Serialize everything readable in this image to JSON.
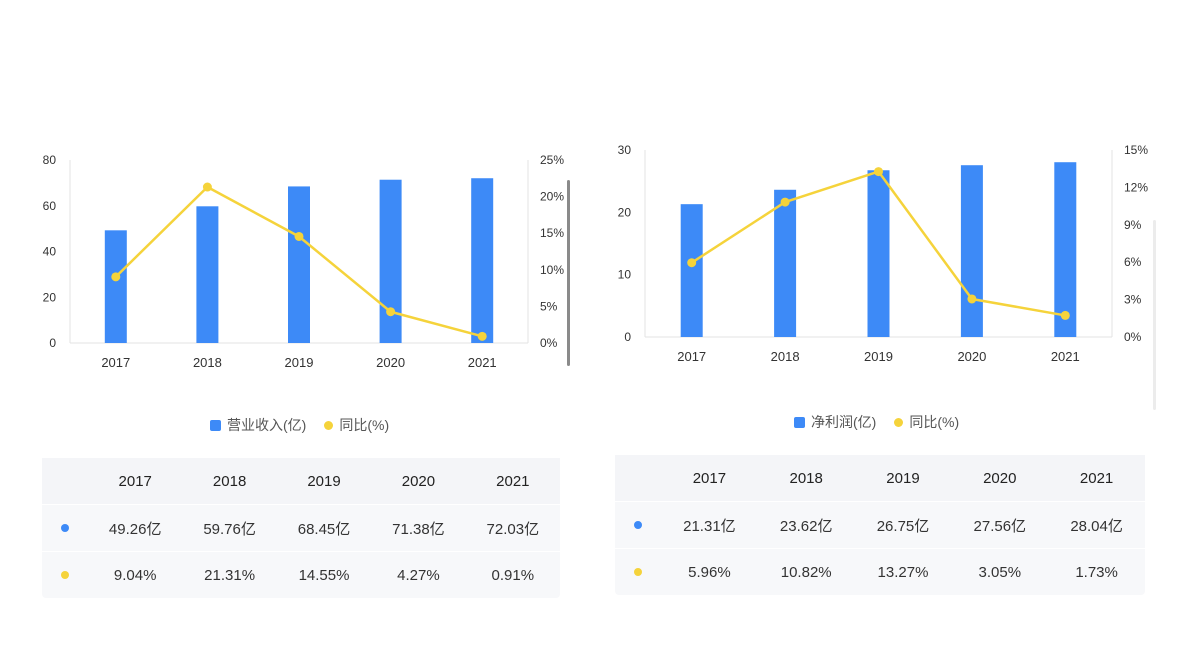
{
  "colors": {
    "bar": "#3d8af7",
    "line": "#f5d33b",
    "axis": "#e3e3e3"
  },
  "chart_data": [
    {
      "type": "bar",
      "categories": [
        "2017",
        "2018",
        "2019",
        "2020",
        "2021"
      ],
      "series": [
        {
          "name": "营业收入(亿)",
          "type": "bar",
          "axis": "left",
          "values": [
            49.26,
            59.76,
            68.45,
            71.38,
            72.03
          ]
        },
        {
          "name": "同比(%)",
          "type": "line",
          "axis": "right",
          "values": [
            9.04,
            21.31,
            14.55,
            4.27,
            0.91
          ]
        }
      ],
      "ylim": [
        0,
        80
      ],
      "y_ticks": [
        "0",
        "20",
        "40",
        "60",
        "80"
      ],
      "y2lim": [
        0,
        25
      ],
      "y2_ticks": [
        "0%",
        "5%",
        "10%",
        "15%",
        "20%",
        "25%"
      ],
      "legend": [
        "营业收入(亿)",
        "同比(%)"
      ],
      "table": {
        "header": [
          "2017",
          "2018",
          "2019",
          "2020",
          "2021"
        ],
        "rows": [
          [
            "49.26亿",
            "59.76亿",
            "68.45亿",
            "71.38亿",
            "72.03亿"
          ],
          [
            "9.04%",
            "21.31%",
            "14.55%",
            "4.27%",
            "0.91%"
          ]
        ]
      }
    },
    {
      "type": "bar",
      "categories": [
        "2017",
        "2018",
        "2019",
        "2020",
        "2021"
      ],
      "series": [
        {
          "name": "净利润(亿)",
          "type": "bar",
          "axis": "left",
          "values": [
            21.31,
            23.62,
            26.75,
            27.56,
            28.04
          ]
        },
        {
          "name": "同比(%)",
          "type": "line",
          "axis": "right",
          "values": [
            5.96,
            10.82,
            13.27,
            3.05,
            1.73
          ]
        }
      ],
      "ylim": [
        0,
        30
      ],
      "y_ticks": [
        "0",
        "10",
        "20",
        "30"
      ],
      "y2lim": [
        0,
        15
      ],
      "y2_ticks": [
        "0%",
        "3%",
        "6%",
        "9%",
        "12%",
        "15%"
      ],
      "legend": [
        "净利润(亿)",
        "同比(%)"
      ],
      "table": {
        "header": [
          "2017",
          "2018",
          "2019",
          "2020",
          "2021"
        ],
        "rows": [
          [
            "21.31亿",
            "23.62亿",
            "26.75亿",
            "27.56亿",
            "28.04亿"
          ],
          [
            "5.96%",
            "10.82%",
            "13.27%",
            "3.05%",
            "1.73%"
          ]
        ]
      }
    }
  ]
}
